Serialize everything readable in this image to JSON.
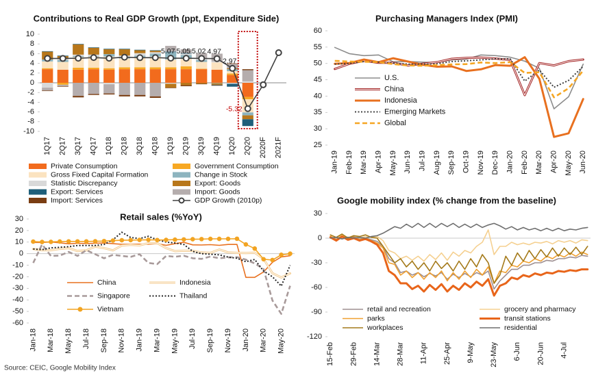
{
  "source": "Source: CEIC, Google Mobility Index",
  "chart_data": [
    {
      "type": "bar",
      "stacked": true,
      "title": "Contributions to Real GDP Growth (ppt, Expenditure Side)",
      "categories": [
        "1Q17",
        "2Q17",
        "3Q17",
        "4Q17",
        "1Q18",
        "2Q18",
        "3Q18",
        "4Q18",
        "1Q19",
        "2Q19",
        "3Q19",
        "4Q19",
        "1Q20",
        "2Q20",
        "2020F",
        "2021F"
      ],
      "ylim": [
        -10,
        10
      ],
      "yticks": [
        -10,
        -8,
        -6,
        -4,
        -2,
        0,
        2,
        4,
        6,
        8,
        10
      ],
      "series": [
        {
          "name": "Private Consumption",
          "color": "#f26b1d",
          "values": [
            2.8,
            2.7,
            2.7,
            2.8,
            2.7,
            2.8,
            2.8,
            2.8,
            2.8,
            2.8,
            2.8,
            2.7,
            1.6,
            -2.9,
            null,
            null
          ]
        },
        {
          "name": "Government Consumption",
          "color": "#f7a823",
          "values": [
            0.2,
            -0.4,
            0.4,
            0.3,
            0.3,
            0.4,
            0.4,
            0.4,
            0.4,
            0.6,
            0.1,
            0.0,
            0.3,
            -0.5,
            null,
            null
          ]
        },
        {
          "name": "Gross Fixed Capital Formation",
          "color": "#fbe3c0",
          "values": [
            1.4,
            1.6,
            2.2,
            2.3,
            2.4,
            1.8,
            2.1,
            2.2,
            1.6,
            1.5,
            1.4,
            1.5,
            0.5,
            -2.7,
            null,
            null
          ]
        },
        {
          "name": "Change in Stock",
          "color": "#8db4bf",
          "values": [
            0.4,
            0.4,
            0.2,
            0.1,
            0.5,
            0.3,
            0.3,
            0.6,
            1.5,
            0.8,
            0.4,
            -0.1,
            0.4,
            -0.6,
            null,
            null
          ]
        },
        {
          "name": "Statistic Discrepancy",
          "color": "#d9d9d9",
          "values": [
            -1.0,
            0.2,
            0.3,
            0.3,
            -0.3,
            0.3,
            0.5,
            0.3,
            -0.2,
            0.3,
            0.4,
            0.2,
            -0.2,
            0.3,
            null,
            null
          ]
        },
        {
          "name": "Export: Goods",
          "color": "#b8771b",
          "values": [
            1.6,
            0.6,
            2.1,
            1.4,
            1.0,
            1.3,
            0.6,
            0.3,
            -0.8,
            -0.5,
            -0.2,
            -0.3,
            0.2,
            -0.8,
            null,
            null
          ]
        },
        {
          "name": "Export: Services",
          "color": "#1f5f7a",
          "values": [
            0.1,
            0.1,
            0.1,
            0.1,
            0.1,
            0.1,
            0.1,
            0.1,
            0.1,
            0.1,
            0.0,
            -0.1,
            -0.6,
            -1.4,
            null,
            null
          ]
        },
        {
          "name": "Import: Goods",
          "color": "#b5adad",
          "values": [
            -0.6,
            -0.3,
            -2.7,
            -2.3,
            -1.9,
            -2.5,
            -2.5,
            -2.8,
            1.2,
            0.8,
            1.0,
            1.6,
            0.9,
            2.3,
            null,
            null
          ]
        },
        {
          "name": "Import: Services",
          "color": "#7a3d12",
          "values": [
            -0.1,
            -0.1,
            -0.3,
            -0.2,
            -0.2,
            -0.3,
            -0.3,
            -0.3,
            -0.1,
            -0.2,
            -0.1,
            -0.1,
            0.1,
            0.2,
            null,
            null
          ]
        },
        {
          "name": "GDP Growth (2010p)",
          "type": "line",
          "marker": "circle",
          "color": "#404040",
          "values": [
            5.01,
            5.01,
            5.06,
            5.19,
            5.06,
            5.27,
            5.17,
            5.18,
            5.07,
            5.05,
            5.02,
            4.97,
            2.97,
            -5.32,
            -0.4,
            6.2
          ],
          "value_labels": [
            null,
            null,
            null,
            null,
            null,
            null,
            null,
            null,
            "5.07",
            "5.05",
            "5.02",
            "4.97",
            "2.97",
            "-5.32",
            null,
            null
          ]
        }
      ]
    },
    {
      "type": "line",
      "title": "Purchasing Managers Index (PMI)",
      "categories": [
        "Jan-19",
        "Feb-19",
        "Mar-19",
        "Apr-19",
        "May-19",
        "Jun-19",
        "Jul-19",
        "Aug-19",
        "Sep-19",
        "Oct-19",
        "Nov-19",
        "Dec-19",
        "Jan-20",
        "Feb-20",
        "Mar-20",
        "Apr-20",
        "May-20",
        "Jun-20"
      ],
      "ylim": [
        25,
        60
      ],
      "yticks": [
        25,
        30,
        35,
        40,
        45,
        50,
        55,
        60
      ],
      "series": [
        {
          "name": "U.S.",
          "color": "#8c8c8c",
          "line_style": "solid",
          "values": [
            54.9,
            53.0,
            52.4,
            52.6,
            50.5,
            50.6,
            50.4,
            50.3,
            51.1,
            51.3,
            52.6,
            52.4,
            51.9,
            50.7,
            48.5,
            36.1,
            39.8,
            49.8
          ]
        },
        {
          "name": "China",
          "color": "#a01c1c",
          "line_style": "double",
          "values": [
            48.3,
            49.9,
            50.8,
            50.2,
            50.2,
            49.4,
            49.9,
            50.4,
            51.4,
            51.7,
            51.8,
            51.5,
            51.1,
            40.3,
            50.1,
            49.4,
            50.7,
            51.2
          ]
        },
        {
          "name": "Indonesia",
          "color": "#e8701f",
          "line_style": "thick",
          "values": [
            49.9,
            50.1,
            51.2,
            50.4,
            51.6,
            50.6,
            49.6,
            49.0,
            49.1,
            47.7,
            48.2,
            49.5,
            49.3,
            51.9,
            45.3,
            27.5,
            28.6,
            39.1
          ]
        },
        {
          "name": "Emerging Markets",
          "color": "#404040",
          "line_style": "dotted",
          "values": [
            49.8,
            50.0,
            50.6,
            50.4,
            50.1,
            49.8,
            49.8,
            49.9,
            50.6,
            50.8,
            51.1,
            51.4,
            51.4,
            44.6,
            48.0,
            42.7,
            44.8,
            49.1
          ]
        },
        {
          "name": "Global",
          "color": "#f5a623",
          "line_style": "dashed",
          "values": [
            50.8,
            50.6,
            50.5,
            50.4,
            49.8,
            49.4,
            49.3,
            49.5,
            49.7,
            49.8,
            50.3,
            50.1,
            50.4,
            47.1,
            47.3,
            39.6,
            42.4,
            47.8
          ]
        }
      ]
    },
    {
      "type": "line",
      "title": "Retail sales (%YoY)",
      "categories": [
        "Jan-18",
        null,
        "Mar-18",
        null,
        "May-18",
        null,
        "Jul-18",
        null,
        "Sep-18",
        null,
        "Nov-18",
        null,
        "Jan-19",
        null,
        "Mar-19",
        null,
        "May-19",
        null,
        "Jul-19",
        null,
        "Sep-19",
        null,
        "Nov-19",
        null,
        "Jan-20",
        null,
        "Mar-20",
        null,
        "May-20",
        null
      ],
      "ylim": [
        -60,
        30
      ],
      "yticks": [
        -60,
        -50,
        -40,
        -30,
        -20,
        -10,
        0,
        10,
        20,
        30
      ],
      "series": [
        {
          "name": "China",
          "color": "#e8701f",
          "line_style": "solid",
          "values": [
            9.7,
            9.7,
            10.1,
            9.4,
            8.5,
            9.0,
            8.8,
            9.0,
            9.2,
            8.6,
            8.1,
            8.2,
            8.2,
            8.2,
            8.7,
            7.2,
            8.6,
            9.8,
            7.6,
            7.5,
            7.8,
            7.2,
            8.0,
            8.0,
            -20.5,
            -20.5,
            -15.8,
            -7.5,
            -2.8,
            -1.8
          ]
        },
        {
          "name": "Indonesia",
          "color": "#f3c98b",
          "line_style": "double",
          "values": [
            4,
            3,
            3,
            4.1,
            4.8,
            2.3,
            2.9,
            6.1,
            4.8,
            2.9,
            7,
            7.7,
            7.2,
            9.1,
            9.1,
            4.8,
            2.2,
            2.5,
            2.4,
            1.1,
            0.7,
            3.6,
            1.1,
            0.7,
            0.6,
            0.8,
            -4.5,
            -16.9,
            -20.6,
            -17.1
          ]
        },
        {
          "name": "Singapore",
          "color": "#a89a9a",
          "line_style": "dashed",
          "values": [
            -8,
            8,
            -2,
            -1.7,
            1.5,
            -2,
            3,
            -0.5,
            -4,
            -1,
            -2,
            -2.8,
            -0.5,
            -8,
            -9,
            -2,
            -2.7,
            -1.8,
            -4,
            -4.5,
            -2.5,
            -4,
            -3.3,
            -3,
            -5.2,
            -8.4,
            -13.3,
            -40.5,
            -52.1,
            -27.8
          ]
        },
        {
          "name": "Thailand",
          "color": "#222222",
          "line_style": "dotted",
          "values": [
            4,
            3.5,
            5,
            5.5,
            6,
            7,
            7,
            7,
            8,
            12,
            18.5,
            14,
            13,
            15,
            12,
            10,
            9.2,
            8,
            2,
            0,
            -0.5,
            -1,
            -3,
            -4,
            -7,
            -5,
            -15,
            -20,
            -28,
            -10
          ]
        },
        {
          "name": "Vietnam",
          "color": "#f2a422",
          "line_style": "solid",
          "marker": "circle",
          "values": [
            10.4,
            10.1,
            10.2,
            10.5,
            10.6,
            10.6,
            10.6,
            10.7,
            10.9,
            11.3,
            11.6,
            11.7,
            11.9,
            12.0,
            11.8,
            11.9,
            12.1,
            12.3,
            12.5,
            12.6,
            12.8,
            12.8,
            12.8,
            12.9,
            8.0,
            4.4,
            -4.8,
            -5.5,
            -1.0,
            0.0
          ]
        }
      ]
    },
    {
      "type": "line",
      "title": "Google mobility index (% change from the baseline)",
      "categories": [
        "15-Feb",
        null,
        null,
        null,
        "29-Feb",
        null,
        null,
        null,
        "14-Mar",
        null,
        null,
        null,
        "28-Mar",
        null,
        null,
        null,
        "11-Apr",
        null,
        null,
        null,
        "25-Apr",
        null,
        null,
        null,
        "9-May",
        null,
        null,
        null,
        "23-May",
        null,
        null,
        null,
        "6-Jun",
        null,
        null,
        null,
        "20-Jun",
        null,
        null,
        null,
        "4-Jul",
        null,
        null,
        null,
        null
      ],
      "ylim": [
        -120,
        30
      ],
      "yticks": [
        -120,
        -90,
        -60,
        -30,
        0,
        30
      ],
      "series": [
        {
          "name": "retail and recreation",
          "color": "#9e8f91",
          "line_style": "solid",
          "values": [
            2,
            -1,
            3,
            0,
            2,
            -1,
            0,
            -2,
            -4,
            -10,
            -25,
            -30,
            -42,
            -40,
            -45,
            -42,
            -47,
            -43,
            -46,
            -42,
            -50,
            -44,
            -48,
            -43,
            -47,
            -42,
            -45,
            -40,
            -62,
            -52,
            -45,
            -38,
            -38,
            -33,
            -33,
            -30,
            -30,
            -27,
            -28,
            -25,
            -25,
            -23,
            -24,
            -21,
            -22
          ]
        },
        {
          "name": "grocery and pharmacy",
          "color": "#f5d090",
          "line_style": "solid",
          "values": [
            3,
            0,
            4,
            1,
            3,
            0,
            2,
            1,
            2,
            -3,
            -15,
            -18,
            -25,
            -22,
            -27,
            -22,
            -28,
            -20,
            -26,
            -18,
            -27,
            -17,
            -22,
            -15,
            -18,
            -10,
            -5,
            10,
            -20,
            -10,
            -10,
            -5,
            -8,
            -6,
            -8,
            -5,
            -6,
            -4,
            -7,
            -3,
            -5,
            -3,
            -6,
            -2,
            -3
          ]
        },
        {
          "name": "parks",
          "color": "#f0a030",
          "line_style": "solid",
          "values": [
            2,
            -2,
            3,
            -1,
            1,
            -2,
            0,
            -3,
            -6,
            -12,
            -30,
            -32,
            -45,
            -40,
            -48,
            -42,
            -50,
            -42,
            -48,
            -40,
            -52,
            -42,
            -50,
            -40,
            -48,
            -38,
            -45,
            -35,
            -55,
            -40,
            -42,
            -33,
            -35,
            -28,
            -30,
            -25,
            -28,
            -22,
            -25,
            -20,
            -23,
            -18,
            -22,
            -17,
            -20
          ]
        },
        {
          "name": "transit stations",
          "color": "#e8651a",
          "line_style": "thick",
          "values": [
            1,
            -3,
            2,
            -2,
            0,
            -3,
            -1,
            -4,
            -8,
            -18,
            -40,
            -45,
            -55,
            -55,
            -62,
            -58,
            -65,
            -57,
            -63,
            -56,
            -65,
            -58,
            -63,
            -55,
            -60,
            -53,
            -58,
            -50,
            -70,
            -58,
            -55,
            -48,
            -50,
            -45,
            -47,
            -43,
            -45,
            -42,
            -43,
            -40,
            -41,
            -39,
            -40,
            -38,
            -38
          ]
        },
        {
          "name": "workplaces",
          "color": "#a47a1a",
          "line_style": "solid",
          "values": [
            4,
            1,
            5,
            0,
            3,
            2,
            4,
            1,
            0,
            -10,
            -20,
            -30,
            -25,
            -35,
            -28,
            -38,
            -30,
            -40,
            -28,
            -37,
            -30,
            -40,
            -28,
            -38,
            -25,
            -35,
            -20,
            -30,
            -55,
            -45,
            -22,
            -33,
            -18,
            -28,
            -15,
            -25,
            -14,
            -23,
            -12,
            -22,
            -12,
            -20,
            -11,
            -20,
            -10
          ]
        },
        {
          "name": "residential",
          "color": "#6f6f6f",
          "line_style": "solid",
          "values": [
            0,
            1,
            -1,
            1,
            0,
            1,
            0,
            2,
            3,
            6,
            10,
            14,
            12,
            17,
            13,
            18,
            13,
            18,
            13,
            18,
            14,
            18,
            13,
            17,
            13,
            17,
            13,
            16,
            18,
            15,
            11,
            14,
            10,
            13,
            10,
            12,
            9,
            12,
            9,
            12,
            9,
            11,
            10,
            12,
            13
          ]
        }
      ]
    }
  ]
}
